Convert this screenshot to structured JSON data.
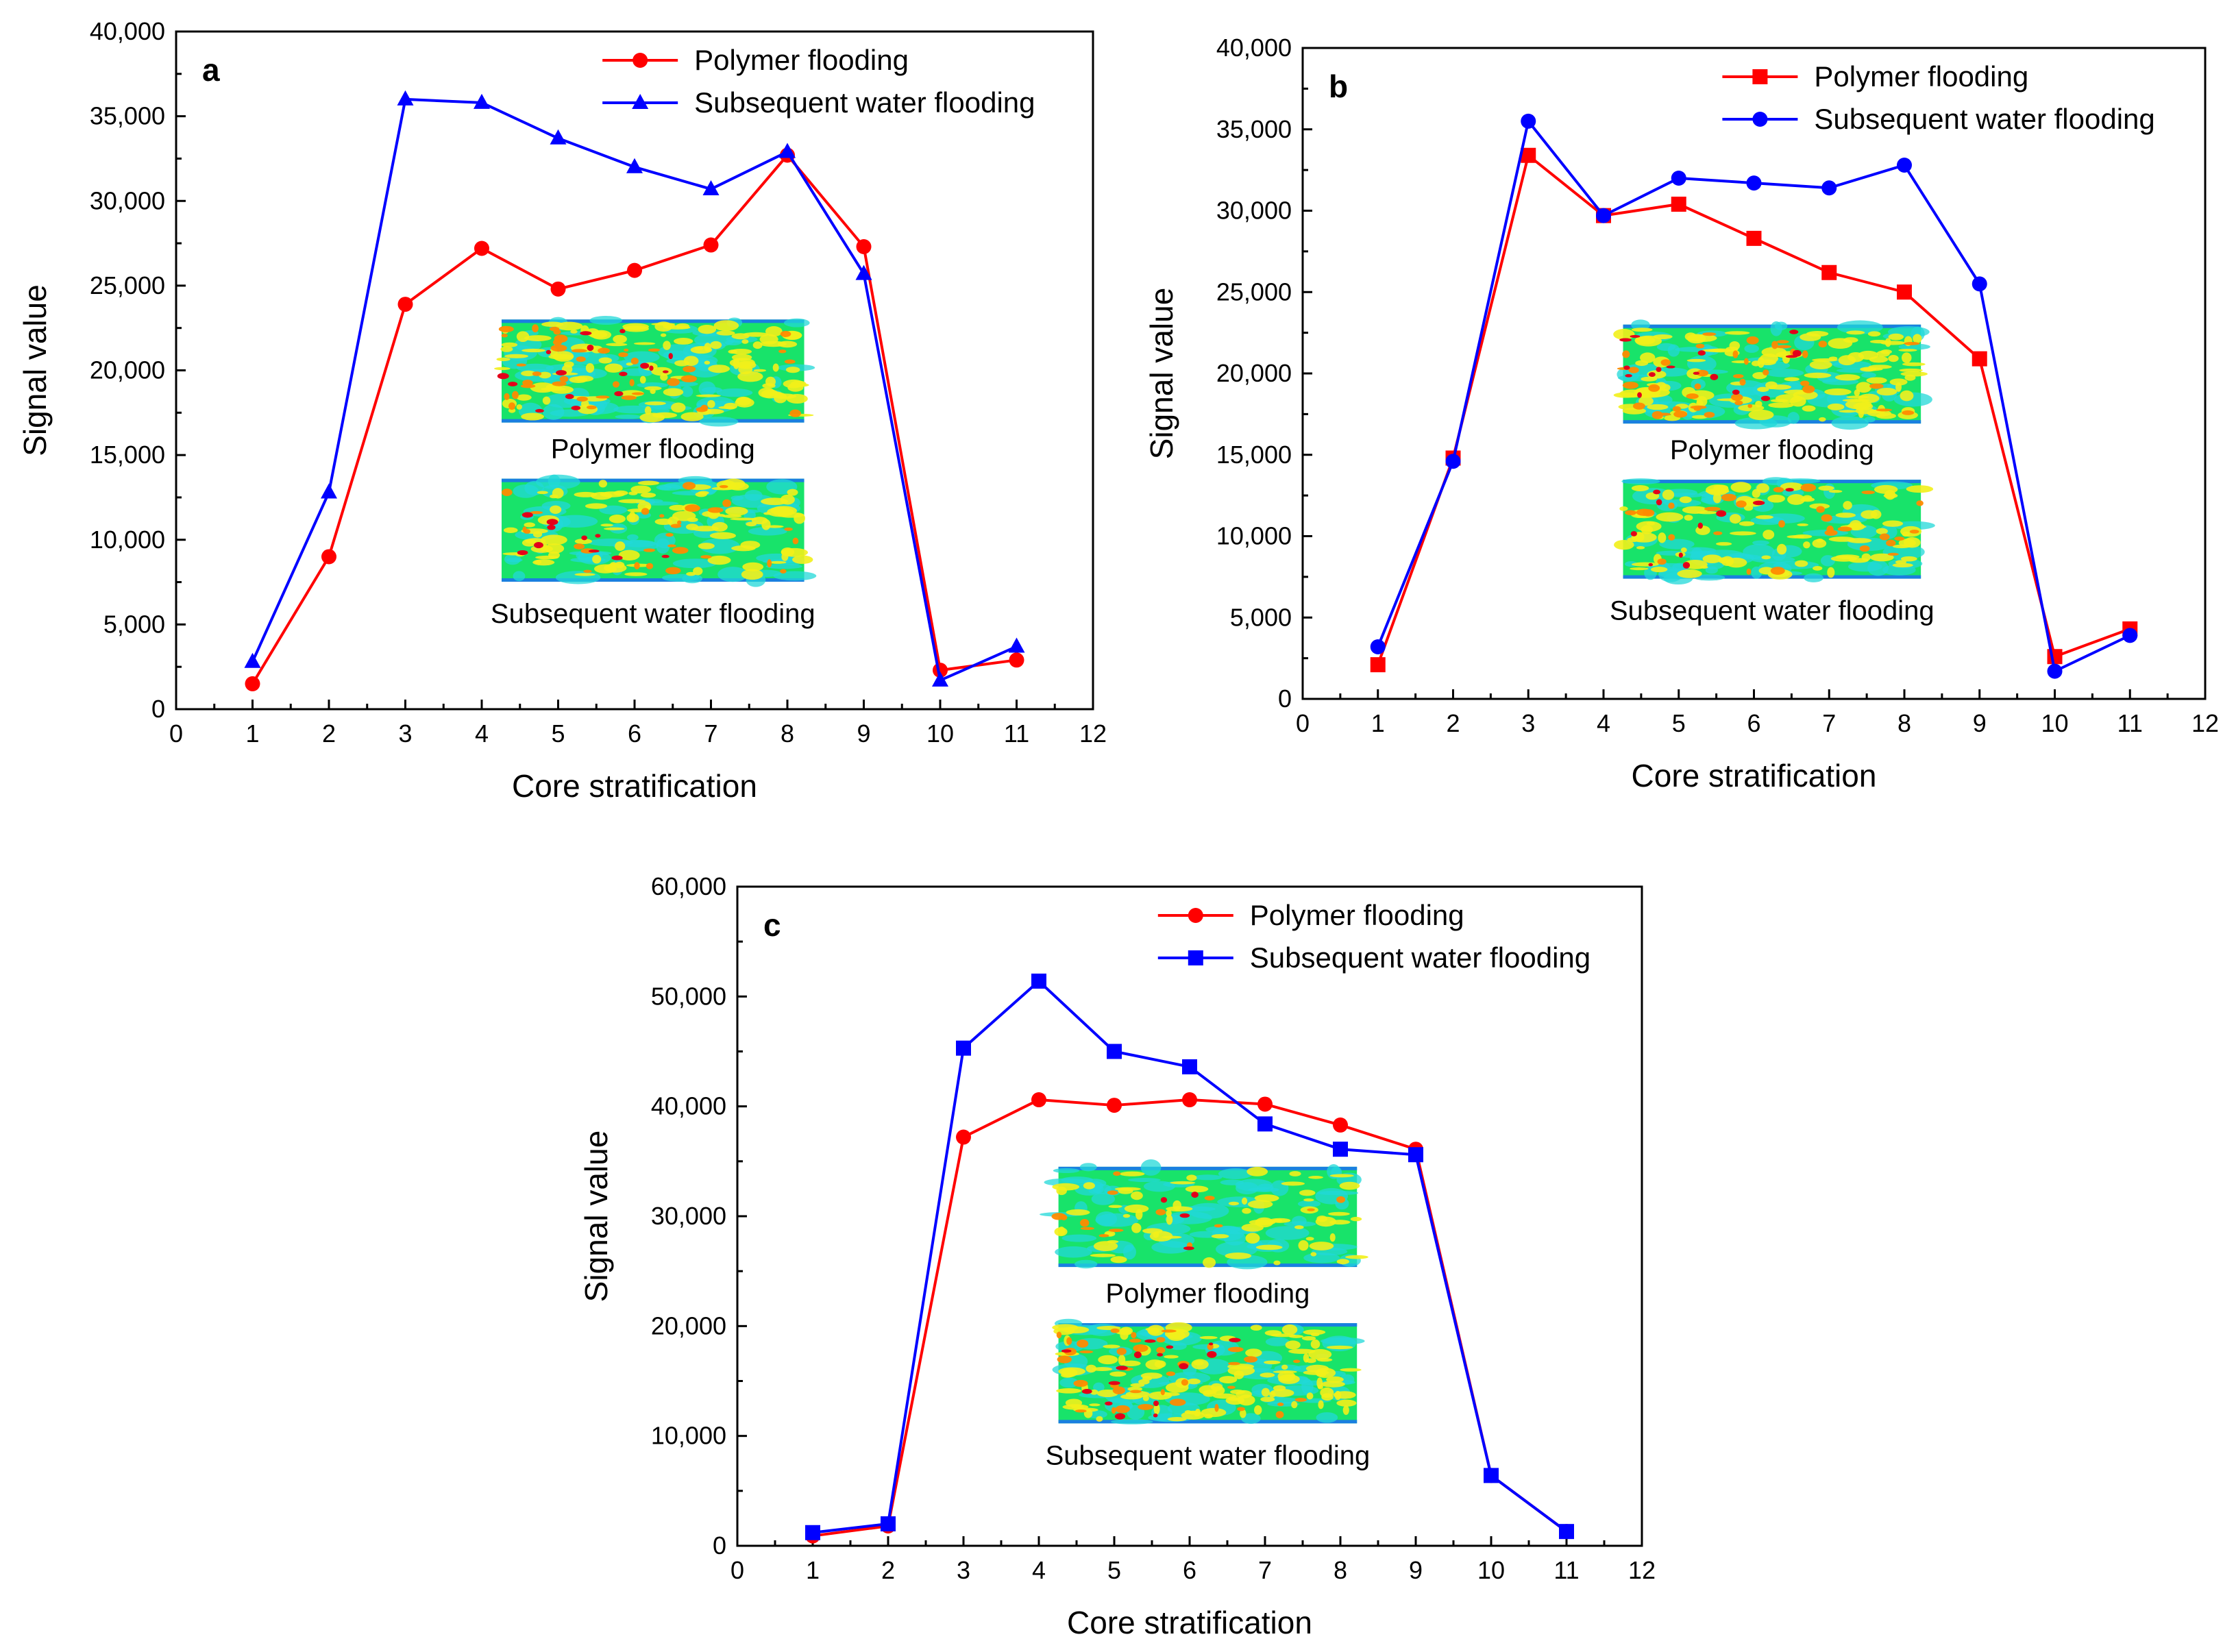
{
  "chart_data": [
    {
      "type": "line",
      "panel_label": "a",
      "xlabel": "Core stratification",
      "ylabel": "Signal value",
      "xlim": [
        0,
        12
      ],
      "ylim": [
        0,
        40000
      ],
      "xticks": [
        0,
        1,
        2,
        3,
        4,
        5,
        6,
        7,
        8,
        9,
        10,
        11,
        12
      ],
      "yticks": [
        0,
        5000,
        10000,
        15000,
        20000,
        25000,
        30000,
        35000,
        40000
      ],
      "ytick_labels": [
        "0",
        "5,000",
        "10,000",
        "15,000",
        "20,000",
        "25,000",
        "30,000",
        "35,000",
        "40,000"
      ],
      "legend_position": "top-right",
      "x": [
        1,
        2,
        3,
        4,
        5,
        6,
        7,
        8,
        9,
        10,
        11
      ],
      "series": [
        {
          "name": "Polymer flooding",
          "color": "#ff0000",
          "marker": "circle",
          "values": [
            1500,
            9000,
            23900,
            27200,
            24800,
            25900,
            27400,
            32700,
            27300,
            2300,
            2900
          ]
        },
        {
          "name": "Subsequent water flooding",
          "color": "#0000ff",
          "marker": "triangle",
          "values": [
            2800,
            12800,
            36000,
            35800,
            33700,
            32000,
            30700,
            32900,
            25700,
            1700,
            3700
          ]
        }
      ],
      "insets": [
        {
          "caption": "Polymer flooding",
          "intensity": "high"
        },
        {
          "caption": "Subsequent water flooding",
          "intensity": "medium"
        }
      ]
    },
    {
      "type": "line",
      "panel_label": "b",
      "xlabel": "Core stratification",
      "ylabel": "Signal value",
      "xlim": [
        0,
        12
      ],
      "ylim": [
        0,
        40000
      ],
      "xticks": [
        0,
        1,
        2,
        3,
        4,
        5,
        6,
        7,
        8,
        9,
        10,
        11,
        12
      ],
      "yticks": [
        0,
        5000,
        10000,
        15000,
        20000,
        25000,
        30000,
        35000,
        40000
      ],
      "ytick_labels": [
        "0",
        "5,000",
        "10,000",
        "15,000",
        "20,000",
        "25,000",
        "30,000",
        "35,000",
        "40,000"
      ],
      "legend_position": "top-right",
      "x": [
        1,
        2,
        3,
        4,
        5,
        6,
        7,
        8,
        9,
        10,
        11
      ],
      "series": [
        {
          "name": "Polymer flooding",
          "color": "#ff0000",
          "marker": "square",
          "values": [
            2100,
            14800,
            33400,
            29700,
            30400,
            28300,
            26200,
            25000,
            20900,
            2600,
            4300
          ]
        },
        {
          "name": "Subsequent water flooding",
          "color": "#0000ff",
          "marker": "circle",
          "values": [
            3200,
            14600,
            35500,
            29700,
            32000,
            31700,
            31400,
            32800,
            25500,
            1700,
            3900
          ]
        }
      ],
      "insets": [
        {
          "caption": "Polymer flooding",
          "intensity": "high"
        },
        {
          "caption": "Subsequent water flooding",
          "intensity": "medium"
        }
      ]
    },
    {
      "type": "line",
      "panel_label": "c",
      "xlabel": "Core stratification",
      "ylabel": "Signal value",
      "xlim": [
        0,
        12
      ],
      "ylim": [
        0,
        60000
      ],
      "xticks": [
        0,
        1,
        2,
        3,
        4,
        5,
        6,
        7,
        8,
        9,
        10,
        11,
        12
      ],
      "yticks": [
        0,
        10000,
        20000,
        30000,
        40000,
        50000,
        60000
      ],
      "ytick_labels": [
        "0",
        "10,000",
        "20,000",
        "30,000",
        "40,000",
        "50,000",
        "60,000"
      ],
      "legend_position": "top-right",
      "x": [
        1,
        2,
        3,
        4,
        5,
        6,
        7,
        8,
        9,
        10,
        11
      ],
      "series": [
        {
          "name": "Polymer flooding",
          "color": "#ff0000",
          "marker": "circle",
          "values": [
            900,
            1800,
            37200,
            40600,
            40100,
            40600,
            40200,
            38300,
            36100,
            6400,
            1300
          ]
        },
        {
          "name": "Subsequent water flooding",
          "color": "#0000ff",
          "marker": "square",
          "values": [
            1200,
            2000,
            45300,
            51400,
            45000,
            43600,
            38400,
            36100,
            35600,
            6400,
            1300
          ]
        }
      ],
      "insets": [
        {
          "caption": "Polymer flooding",
          "intensity": "low"
        },
        {
          "caption": "Subsequent water flooding",
          "intensity": "high"
        }
      ]
    }
  ]
}
